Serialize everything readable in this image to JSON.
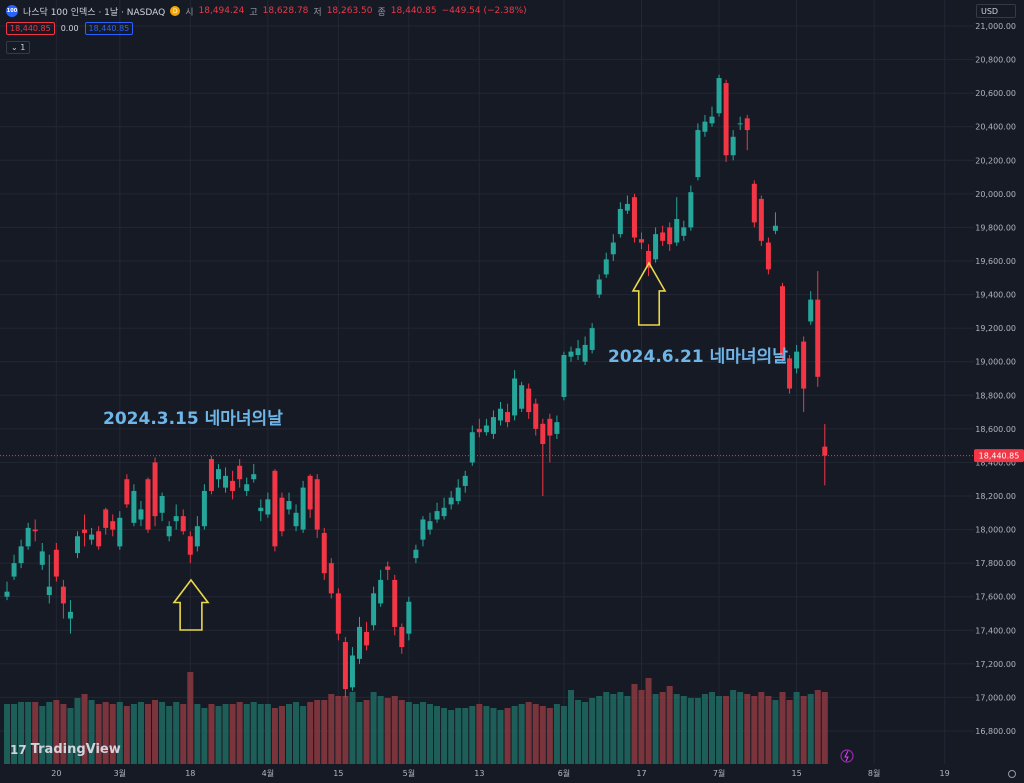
{
  "header": {
    "logo_text": "100",
    "symbol": "나스닥 100 인덱스 · 1날 · NASDAQ",
    "interval_badge": "D",
    "open_label": "시",
    "open_value": "18,494.24",
    "high_label": "고",
    "high_value": "18,628.78",
    "low_label": "저",
    "low_value": "18,263.50",
    "close_label": "종",
    "close_value": "18,440.85",
    "change": "−449.54 (−2.38%)",
    "sell_price": "18,440.85",
    "spread": "0.00",
    "buy_price": "18,440.85",
    "indicator_count": "1",
    "currency": "USD"
  },
  "annotations": {
    "march": "2024.3.15 네마녀의날",
    "june": "2024.6.21 네마녀의날"
  },
  "branding": {
    "name": "TradingView",
    "mark": "17"
  },
  "colors": {
    "background": "#161a25",
    "up": "#26a69a",
    "down": "#f23645",
    "grid": "#232734",
    "arrow": "#e8d84a",
    "annotation": "#6fb6e8"
  },
  "chart_data": {
    "type": "candlestick",
    "price_axis": {
      "ticks": [
        16800,
        17000,
        17200,
        17400,
        17600,
        17800,
        18000,
        18200,
        18400,
        18600,
        18800,
        19000,
        19200,
        19400,
        19600,
        19800,
        20000,
        20200,
        20400,
        20600,
        20800,
        21000
      ],
      "tick_labels": [
        "16,800.00",
        "17,000.00",
        "17,200.00",
        "17,400.00",
        "17,600.00",
        "17,800.00",
        "18,000.00",
        "18,200.00",
        "18,400.00",
        "18,600.00",
        "18,800.00",
        "19,000.00",
        "19,200.00",
        "19,400.00",
        "19,600.00",
        "19,800.00",
        "20,000.00",
        "20,200.00",
        "20,400.00",
        "20,600.00",
        "20,800.00",
        "21,000.00"
      ],
      "last_price": 18440.85,
      "last_price_label": "18,440.85"
    },
    "time_axis": {
      "labels": [
        "20",
        "3월",
        "18",
        "4월",
        "15",
        "5월",
        "13",
        "6월",
        "17",
        "7월",
        "15",
        "8월",
        "19"
      ],
      "label_index": [
        7,
        16,
        26,
        37,
        47,
        57,
        67,
        79,
        90,
        101,
        112,
        123,
        133
      ]
    },
    "candles": [
      {
        "o": 17600,
        "c": 17630,
        "h": 17690,
        "l": 17580
      },
      {
        "o": 17720,
        "c": 17800,
        "h": 17850,
        "l": 17700
      },
      {
        "o": 17800,
        "c": 17900,
        "h": 17940,
        "l": 17770
      },
      {
        "o": 17900,
        "c": 18010,
        "h": 18040,
        "l": 17880
      },
      {
        "o": 18000,
        "c": 17990,
        "h": 18060,
        "l": 17930
      },
      {
        "o": 17790,
        "c": 17870,
        "h": 17920,
        "l": 17760
      },
      {
        "o": 17610,
        "c": 17660,
        "h": 17850,
        "l": 17560
      },
      {
        "o": 17880,
        "c": 17720,
        "h": 17920,
        "l": 17690
      },
      {
        "o": 17660,
        "c": 17560,
        "h": 17700,
        "l": 17470
      },
      {
        "o": 17470,
        "c": 17510,
        "h": 17580,
        "l": 17380
      },
      {
        "o": 17860,
        "c": 17960,
        "h": 17990,
        "l": 17830
      },
      {
        "o": 18000,
        "c": 17980,
        "h": 18090,
        "l": 17900
      },
      {
        "o": 17940,
        "c": 17970,
        "h": 18010,
        "l": 17910
      },
      {
        "o": 17990,
        "c": 17900,
        "h": 18020,
        "l": 17880
      },
      {
        "o": 18120,
        "c": 18010,
        "h": 18130,
        "l": 17970
      },
      {
        "o": 18050,
        "c": 18000,
        "h": 18090,
        "l": 17960
      },
      {
        "o": 17900,
        "c": 18070,
        "h": 18110,
        "l": 17880
      },
      {
        "o": 18300,
        "c": 18150,
        "h": 18330,
        "l": 18130
      },
      {
        "o": 18040,
        "c": 18230,
        "h": 18270,
        "l": 18020
      },
      {
        "o": 18060,
        "c": 18120,
        "h": 18170,
        "l": 18020
      },
      {
        "o": 18300,
        "c": 18000,
        "h": 18310,
        "l": 17980
      },
      {
        "o": 18400,
        "c": 18080,
        "h": 18430,
        "l": 18020
      },
      {
        "o": 18100,
        "c": 18200,
        "h": 18220,
        "l": 18050
      },
      {
        "o": 17960,
        "c": 18020,
        "h": 18050,
        "l": 17930
      },
      {
        "o": 18050,
        "c": 18080,
        "h": 18150,
        "l": 18000
      },
      {
        "o": 18080,
        "c": 17990,
        "h": 18120,
        "l": 17970
      },
      {
        "o": 17960,
        "c": 17850,
        "h": 17990,
        "l": 17800
      },
      {
        "o": 17900,
        "c": 18020,
        "h": 18080,
        "l": 17870
      },
      {
        "o": 18020,
        "c": 18230,
        "h": 18270,
        "l": 18000
      },
      {
        "o": 18420,
        "c": 18230,
        "h": 18440,
        "l": 18210
      },
      {
        "o": 18300,
        "c": 18360,
        "h": 18390,
        "l": 18250
      },
      {
        "o": 18250,
        "c": 18320,
        "h": 18370,
        "l": 18220
      },
      {
        "o": 18290,
        "c": 18230,
        "h": 18350,
        "l": 18180
      },
      {
        "o": 18380,
        "c": 18300,
        "h": 18420,
        "l": 18250
      },
      {
        "o": 18230,
        "c": 18270,
        "h": 18310,
        "l": 18200
      },
      {
        "o": 18300,
        "c": 18330,
        "h": 18390,
        "l": 18280
      },
      {
        "o": 18110,
        "c": 18130,
        "h": 18180,
        "l": 18050
      },
      {
        "o": 18090,
        "c": 18180,
        "h": 18220,
        "l": 18070
      },
      {
        "o": 18350,
        "c": 17900,
        "h": 18360,
        "l": 17870
      },
      {
        "o": 18190,
        "c": 17990,
        "h": 18220,
        "l": 17960
      },
      {
        "o": 18120,
        "c": 18170,
        "h": 18220,
        "l": 18090
      },
      {
        "o": 18020,
        "c": 18100,
        "h": 18150,
        "l": 17990
      },
      {
        "o": 18000,
        "c": 18250,
        "h": 18290,
        "l": 17980
      },
      {
        "o": 18320,
        "c": 18120,
        "h": 18330,
        "l": 18070
      },
      {
        "o": 18300,
        "c": 18000,
        "h": 18330,
        "l": 17950
      },
      {
        "o": 17980,
        "c": 17740,
        "h": 18010,
        "l": 17700
      },
      {
        "o": 17800,
        "c": 17620,
        "h": 17830,
        "l": 17590
      },
      {
        "o": 17620,
        "c": 17380,
        "h": 17650,
        "l": 17340
      },
      {
        "o": 17330,
        "c": 17050,
        "h": 17360,
        "l": 17000
      },
      {
        "o": 17060,
        "c": 17250,
        "h": 17300,
        "l": 17040
      },
      {
        "o": 17230,
        "c": 17420,
        "h": 17480,
        "l": 17200
      },
      {
        "o": 17390,
        "c": 17310,
        "h": 17450,
        "l": 17280
      },
      {
        "o": 17430,
        "c": 17620,
        "h": 17660,
        "l": 17400
      },
      {
        "o": 17560,
        "c": 17700,
        "h": 17760,
        "l": 17540
      },
      {
        "o": 17780,
        "c": 17760,
        "h": 17810,
        "l": 17700
      },
      {
        "o": 17700,
        "c": 17420,
        "h": 17730,
        "l": 17370
      },
      {
        "o": 17420,
        "c": 17300,
        "h": 17440,
        "l": 17260
      },
      {
        "o": 17380,
        "c": 17570,
        "h": 17600,
        "l": 17340
      },
      {
        "o": 17830,
        "c": 17880,
        "h": 17910,
        "l": 17800
      },
      {
        "o": 17940,
        "c": 18060,
        "h": 18080,
        "l": 17900
      },
      {
        "o": 18000,
        "c": 18050,
        "h": 18100,
        "l": 17970
      },
      {
        "o": 18060,
        "c": 18110,
        "h": 18160,
        "l": 18040
      },
      {
        "o": 18080,
        "c": 18130,
        "h": 18190,
        "l": 18060
      },
      {
        "o": 18150,
        "c": 18190,
        "h": 18230,
        "l": 18120
      },
      {
        "o": 18170,
        "c": 18250,
        "h": 18300,
        "l": 18150
      },
      {
        "o": 18260,
        "c": 18320,
        "h": 18350,
        "l": 18220
      },
      {
        "o": 18400,
        "c": 18580,
        "h": 18620,
        "l": 18380
      },
      {
        "o": 18600,
        "c": 18580,
        "h": 18660,
        "l": 18550
      },
      {
        "o": 18580,
        "c": 18620,
        "h": 18660,
        "l": 18560
      },
      {
        "o": 18570,
        "c": 18670,
        "h": 18710,
        "l": 18540
      },
      {
        "o": 18650,
        "c": 18720,
        "h": 18760,
        "l": 18620
      },
      {
        "o": 18700,
        "c": 18640,
        "h": 18750,
        "l": 18610
      },
      {
        "o": 18680,
        "c": 18900,
        "h": 18950,
        "l": 18650
      },
      {
        "o": 18720,
        "c": 18860,
        "h": 18880,
        "l": 18700
      },
      {
        "o": 18840,
        "c": 18700,
        "h": 18870,
        "l": 18660
      },
      {
        "o": 18750,
        "c": 18600,
        "h": 18780,
        "l": 18560
      },
      {
        "o": 18630,
        "c": 18510,
        "h": 18660,
        "l": 18200
      },
      {
        "o": 18660,
        "c": 18560,
        "h": 18690,
        "l": 18400
      },
      {
        "o": 18570,
        "c": 18640,
        "h": 18680,
        "l": 18540
      },
      {
        "o": 18790,
        "c": 19040,
        "h": 19060,
        "l": 18770
      },
      {
        "o": 19030,
        "c": 19060,
        "h": 19090,
        "l": 19000
      },
      {
        "o": 19040,
        "c": 19080,
        "h": 19130,
        "l": 19010
      },
      {
        "o": 19000,
        "c": 19100,
        "h": 19150,
        "l": 18980
      },
      {
        "o": 19070,
        "c": 19200,
        "h": 19230,
        "l": 19050
      },
      {
        "o": 19400,
        "c": 19490,
        "h": 19520,
        "l": 19380
      },
      {
        "o": 19520,
        "c": 19610,
        "h": 19650,
        "l": 19500
      },
      {
        "o": 19640,
        "c": 19710,
        "h": 19760,
        "l": 19600
      },
      {
        "o": 19760,
        "c": 19910,
        "h": 19950,
        "l": 19740
      },
      {
        "o": 19900,
        "c": 19940,
        "h": 19990,
        "l": 19880
      },
      {
        "o": 19980,
        "c": 19740,
        "h": 20000,
        "l": 19710
      },
      {
        "o": 19730,
        "c": 19710,
        "h": 19770,
        "l": 19670
      },
      {
        "o": 19660,
        "c": 19560,
        "h": 19700,
        "l": 19510
      },
      {
        "o": 19610,
        "c": 19760,
        "h": 19800,
        "l": 19590
      },
      {
        "o": 19770,
        "c": 19720,
        "h": 19810,
        "l": 19690
      },
      {
        "o": 19800,
        "c": 19700,
        "h": 19830,
        "l": 19660
      },
      {
        "o": 19710,
        "c": 19850,
        "h": 19980,
        "l": 19690
      },
      {
        "o": 19750,
        "c": 19800,
        "h": 19840,
        "l": 19720
      },
      {
        "o": 19800,
        "c": 20010,
        "h": 20050,
        "l": 19780
      },
      {
        "o": 20100,
        "c": 20380,
        "h": 20420,
        "l": 20080
      },
      {
        "o": 20370,
        "c": 20430,
        "h": 20470,
        "l": 20340
      },
      {
        "o": 20420,
        "c": 20460,
        "h": 20520,
        "l": 20400
      },
      {
        "o": 20480,
        "c": 20690,
        "h": 20710,
        "l": 20460
      },
      {
        "o": 20660,
        "c": 20230,
        "h": 20680,
        "l": 20190
      },
      {
        "o": 20230,
        "c": 20340,
        "h": 20380,
        "l": 20200
      },
      {
        "o": 20420,
        "c": 20420,
        "h": 20460,
        "l": 20380
      },
      {
        "o": 20450,
        "c": 20380,
        "h": 20470,
        "l": 20260
      },
      {
        "o": 20060,
        "c": 19830,
        "h": 20080,
        "l": 19800
      },
      {
        "o": 19970,
        "c": 19720,
        "h": 19990,
        "l": 19690
      },
      {
        "o": 19710,
        "c": 19550,
        "h": 19740,
        "l": 19520
      },
      {
        "o": 19780,
        "c": 19810,
        "h": 19890,
        "l": 19760
      },
      {
        "o": 19450,
        "c": 19030,
        "h": 19470,
        "l": 19000
      },
      {
        "o": 19020,
        "c": 18840,
        "h": 19040,
        "l": 18810
      },
      {
        "o": 18960,
        "c": 19060,
        "h": 19100,
        "l": 18930
      },
      {
        "o": 19120,
        "c": 18840,
        "h": 19150,
        "l": 18700
      },
      {
        "o": 19240,
        "c": 19370,
        "h": 19420,
        "l": 19220
      },
      {
        "o": 19370,
        "c": 18910,
        "h": 19540,
        "l": 18850
      },
      {
        "o": 18494.24,
        "c": 18440.85,
        "h": 18628.78,
        "l": 18263.5
      }
    ],
    "candle_slots": {
      "0": 0,
      "1": 1,
      "2": 2,
      "3": 3,
      "4": 4,
      "5": 5,
      "6": 6,
      "7": 7,
      "8": 8,
      "9": 9,
      "10": 10,
      "11": 11,
      "12": 12,
      "13": 13,
      "14": 14,
      "15": 15,
      "16": 16,
      "17": 17,
      "18": 18,
      "19": 19,
      "20": 20,
      "21": 21,
      "22": 22,
      "23": 23,
      "24": 24,
      "25": 25,
      "26": 26,
      "27": 27,
      "28": 28,
      "29": 29,
      "30": 30,
      "31": 31,
      "32": 32,
      "33": 33,
      "34": 34,
      "35": 35,
      "36": 36,
      "37": 37,
      "38": 38,
      "39": 39,
      "40": 40,
      "41": 41,
      "42": 42,
      "43": 43,
      "44": 44,
      "45": 45,
      "46": 46,
      "47": 47,
      "48": 48,
      "49": 49,
      "50": 50,
      "51": 51,
      "52": 52,
      "53": 53,
      "54": 54,
      "55": 55,
      "56": 56,
      "57": 57,
      "58": 58,
      "59": 59,
      "60": 60,
      "61": 61,
      "62": 62,
      "63": 63,
      "64": 64,
      "65": 65,
      "66": 66,
      "67": 67,
      "68": 68,
      "69": 69,
      "70": 70,
      "71": 71,
      "72": 72,
      "73": 73,
      "74": 74,
      "75": 75,
      "76": 76,
      "77": 77,
      "78": 78,
      "79": 79,
      "80": 80,
      "81": 81,
      "82": 82,
      "83": 83,
      "84": 84,
      "85": 85,
      "86": 86,
      "87": 87,
      "88": 88,
      "89": 89,
      "90": 90,
      "91": 91,
      "92": 92,
      "93": 93,
      "94": 94,
      "95": 95,
      "96": 96,
      "97": 97,
      "98": 98,
      "99": 99,
      "100": 100,
      "101": 101,
      "102": 102,
      "103": 103,
      "104": 104,
      "105": 105,
      "106": 106,
      "107": 107,
      "108": 108,
      "109": 109,
      "110": 110,
      "111": 111,
      "112": 112,
      "113": 113,
      "114": 114,
      "115": 115,
      "116": 116,
      "117": 117
    },
    "volume_relative": [
      0.3,
      0.3,
      0.31,
      0.31,
      0.31,
      0.29,
      0.31,
      0.32,
      0.3,
      0.28,
      0.33,
      0.35,
      0.32,
      0.3,
      0.31,
      0.3,
      0.31,
      0.29,
      0.3,
      0.31,
      0.3,
      0.32,
      0.31,
      0.29,
      0.31,
      0.3,
      0.46,
      0.3,
      0.28,
      0.3,
      0.29,
      0.3,
      0.3,
      0.31,
      0.3,
      0.31,
      0.3,
      0.3,
      0.28,
      0.29,
      0.3,
      0.31,
      0.29,
      0.31,
      0.32,
      0.32,
      0.35,
      0.34,
      0.34,
      0.36,
      0.31,
      0.32,
      0.36,
      0.34,
      0.33,
      0.34,
      0.32,
      0.31,
      0.3,
      0.31,
      0.3,
      0.29,
      0.28,
      0.27,
      0.28,
      0.28,
      0.29,
      0.3,
      0.29,
      0.28,
      0.27,
      0.28,
      0.29,
      0.3,
      0.31,
      0.3,
      0.29,
      0.28,
      0.3,
      0.29,
      0.37,
      0.32,
      0.31,
      0.33,
      0.34,
      0.36,
      0.35,
      0.36,
      0.34,
      0.4,
      0.37,
      0.43,
      0.35,
      0.36,
      0.39,
      0.35,
      0.34,
      0.33,
      0.33,
      0.35,
      0.36,
      0.34,
      0.34,
      0.37,
      0.36,
      0.35,
      0.34,
      0.36,
      0.34,
      0.32,
      0.36,
      0.32,
      0.36,
      0.34,
      0.35,
      0.37,
      0.36,
      0.39
    ]
  }
}
